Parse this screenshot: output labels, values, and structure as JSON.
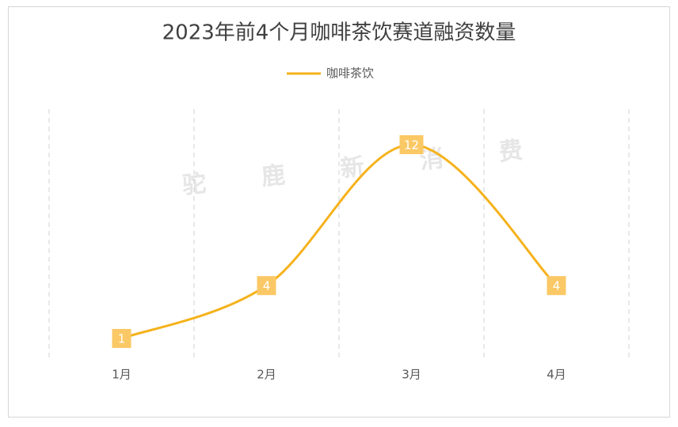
{
  "chart_data": {
    "type": "line",
    "title": "2023年前4个月咖啡茶饮赛道融资数量",
    "categories": [
      "1月",
      "2月",
      "3月",
      "4月"
    ],
    "series": [
      {
        "name": "咖啡茶饮",
        "color": "#f5b21b",
        "label_color": "#fbc866",
        "values": [
          1,
          4,
          12,
          4
        ]
      }
    ],
    "smooth": true,
    "legend": "top",
    "watermark": "驼 鹿 新 消 费"
  }
}
